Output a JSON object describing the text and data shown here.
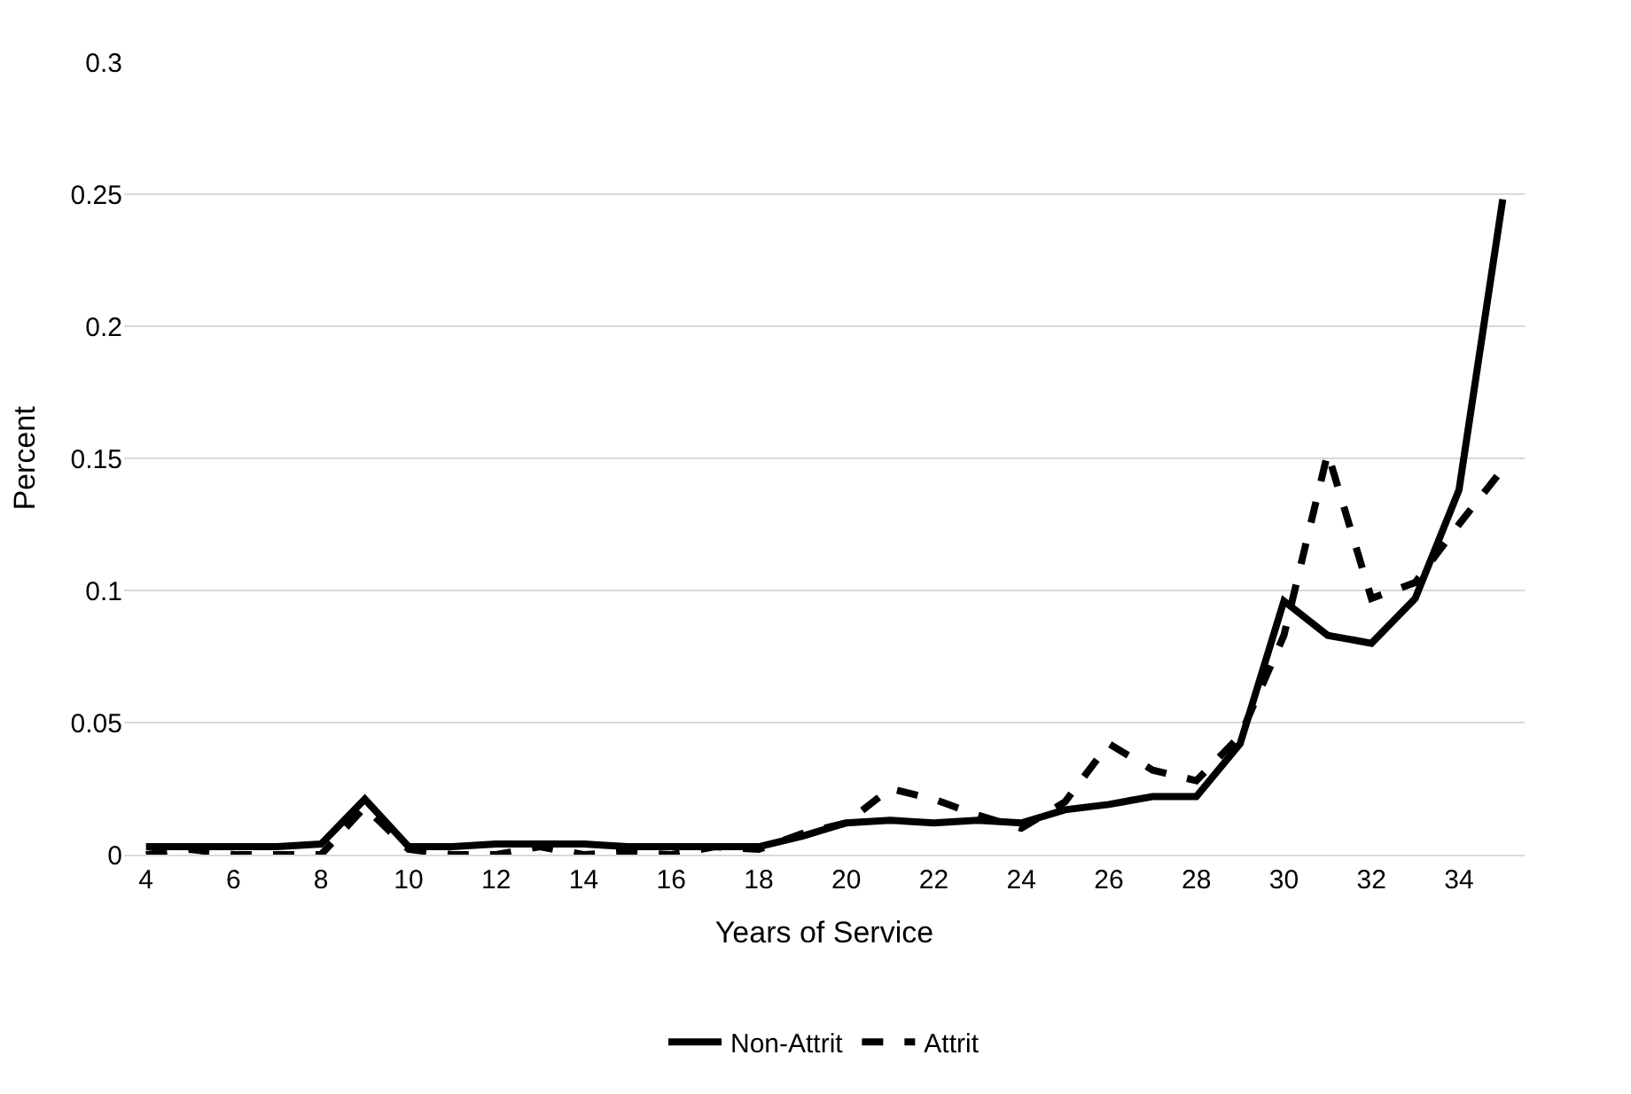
{
  "chart_data": {
    "type": "line",
    "xlabel": "Years of Service",
    "ylabel": "Percent",
    "categories": [
      "4",
      null,
      "6",
      null,
      "8",
      null,
      "10",
      null,
      "12",
      null,
      "14",
      null,
      "16",
      null,
      "18",
      null,
      "20",
      null,
      "22",
      null,
      "24",
      null,
      "26",
      null,
      "28",
      null,
      "30",
      null,
      "32",
      null,
      "34",
      null
    ],
    "series": [
      {
        "name": "Non-Attrit",
        "color": "#000000",
        "line_style": "solid",
        "values": [
          0.003,
          0.003,
          0.003,
          0.003,
          0.004,
          0.021,
          0.003,
          0.003,
          0.004,
          0.004,
          0.004,
          0.003,
          0.003,
          0.003,
          0.003,
          0.007,
          0.012,
          0.013,
          0.012,
          0.013,
          0.012,
          0.017,
          0.019,
          0.022,
          0.022,
          0.042,
          0.096,
          0.083,
          0.08,
          0.097,
          0.138,
          0.248
        ]
      },
      {
        "name": "Attrit",
        "color": "#000000",
        "line_style": "dashed",
        "values": [
          0.0,
          0.002,
          0.0,
          0.0,
          0.0,
          0.018,
          0.002,
          0.0,
          0.0,
          0.003,
          0.0,
          0.001,
          0.0,
          0.003,
          0.002,
          0.008,
          0.012,
          0.025,
          0.021,
          0.015,
          0.01,
          0.02,
          0.042,
          0.032,
          0.028,
          0.045,
          0.083,
          0.152,
          0.097,
          0.103,
          0.125,
          0.146
        ]
      }
    ],
    "ylim": [
      0,
      0.3
    ],
    "yticks": [
      0,
      0.05,
      0.1,
      0.15,
      0.2,
      0.25,
      0.3
    ],
    "grid": "y",
    "legend": "bottom",
    "marker": "none"
  }
}
